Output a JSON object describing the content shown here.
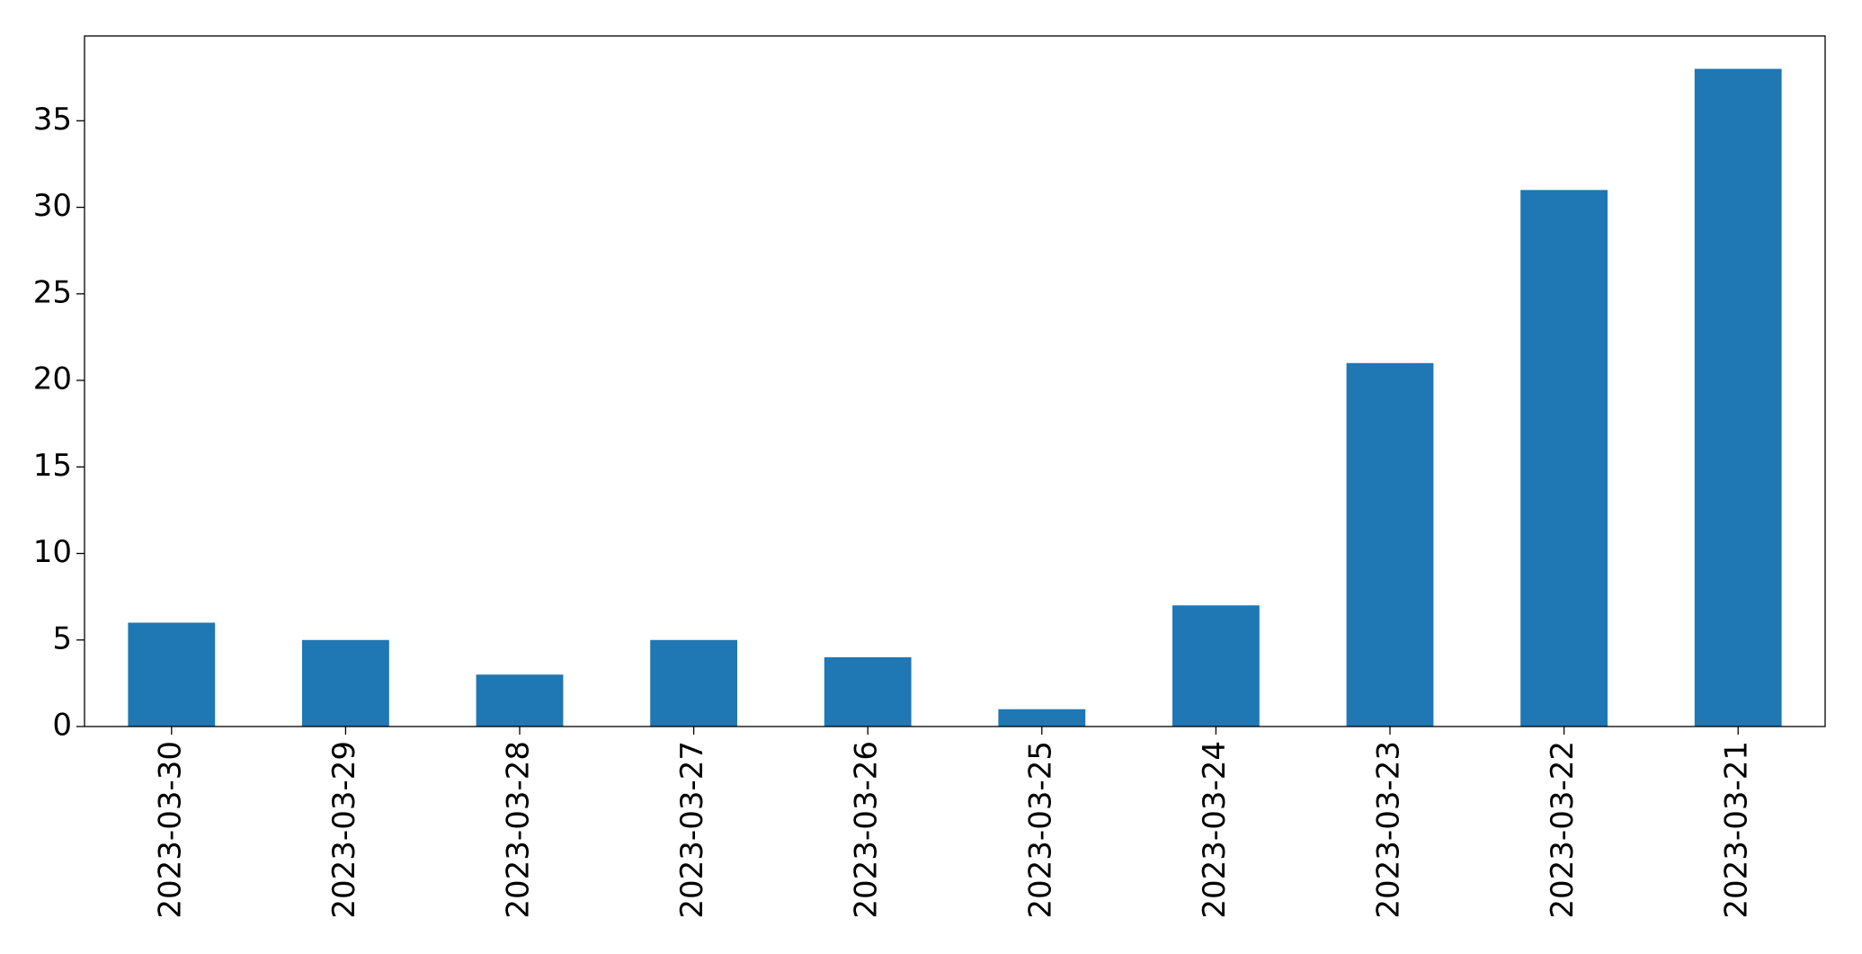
{
  "chart_data": {
    "type": "bar",
    "categories": [
      "2023-03-30",
      "2023-03-29",
      "2023-03-28",
      "2023-03-27",
      "2023-03-26",
      "2023-03-25",
      "2023-03-24",
      "2023-03-23",
      "2023-03-22",
      "2023-03-21"
    ],
    "values": [
      6,
      5,
      3,
      5,
      4,
      1,
      7,
      21,
      31,
      38
    ],
    "color": "#1f77b4",
    "ylim": [
      0,
      39.9
    ],
    "yticks": [
      0,
      5,
      10,
      15,
      20,
      25,
      30,
      35
    ],
    "grid": false
  }
}
